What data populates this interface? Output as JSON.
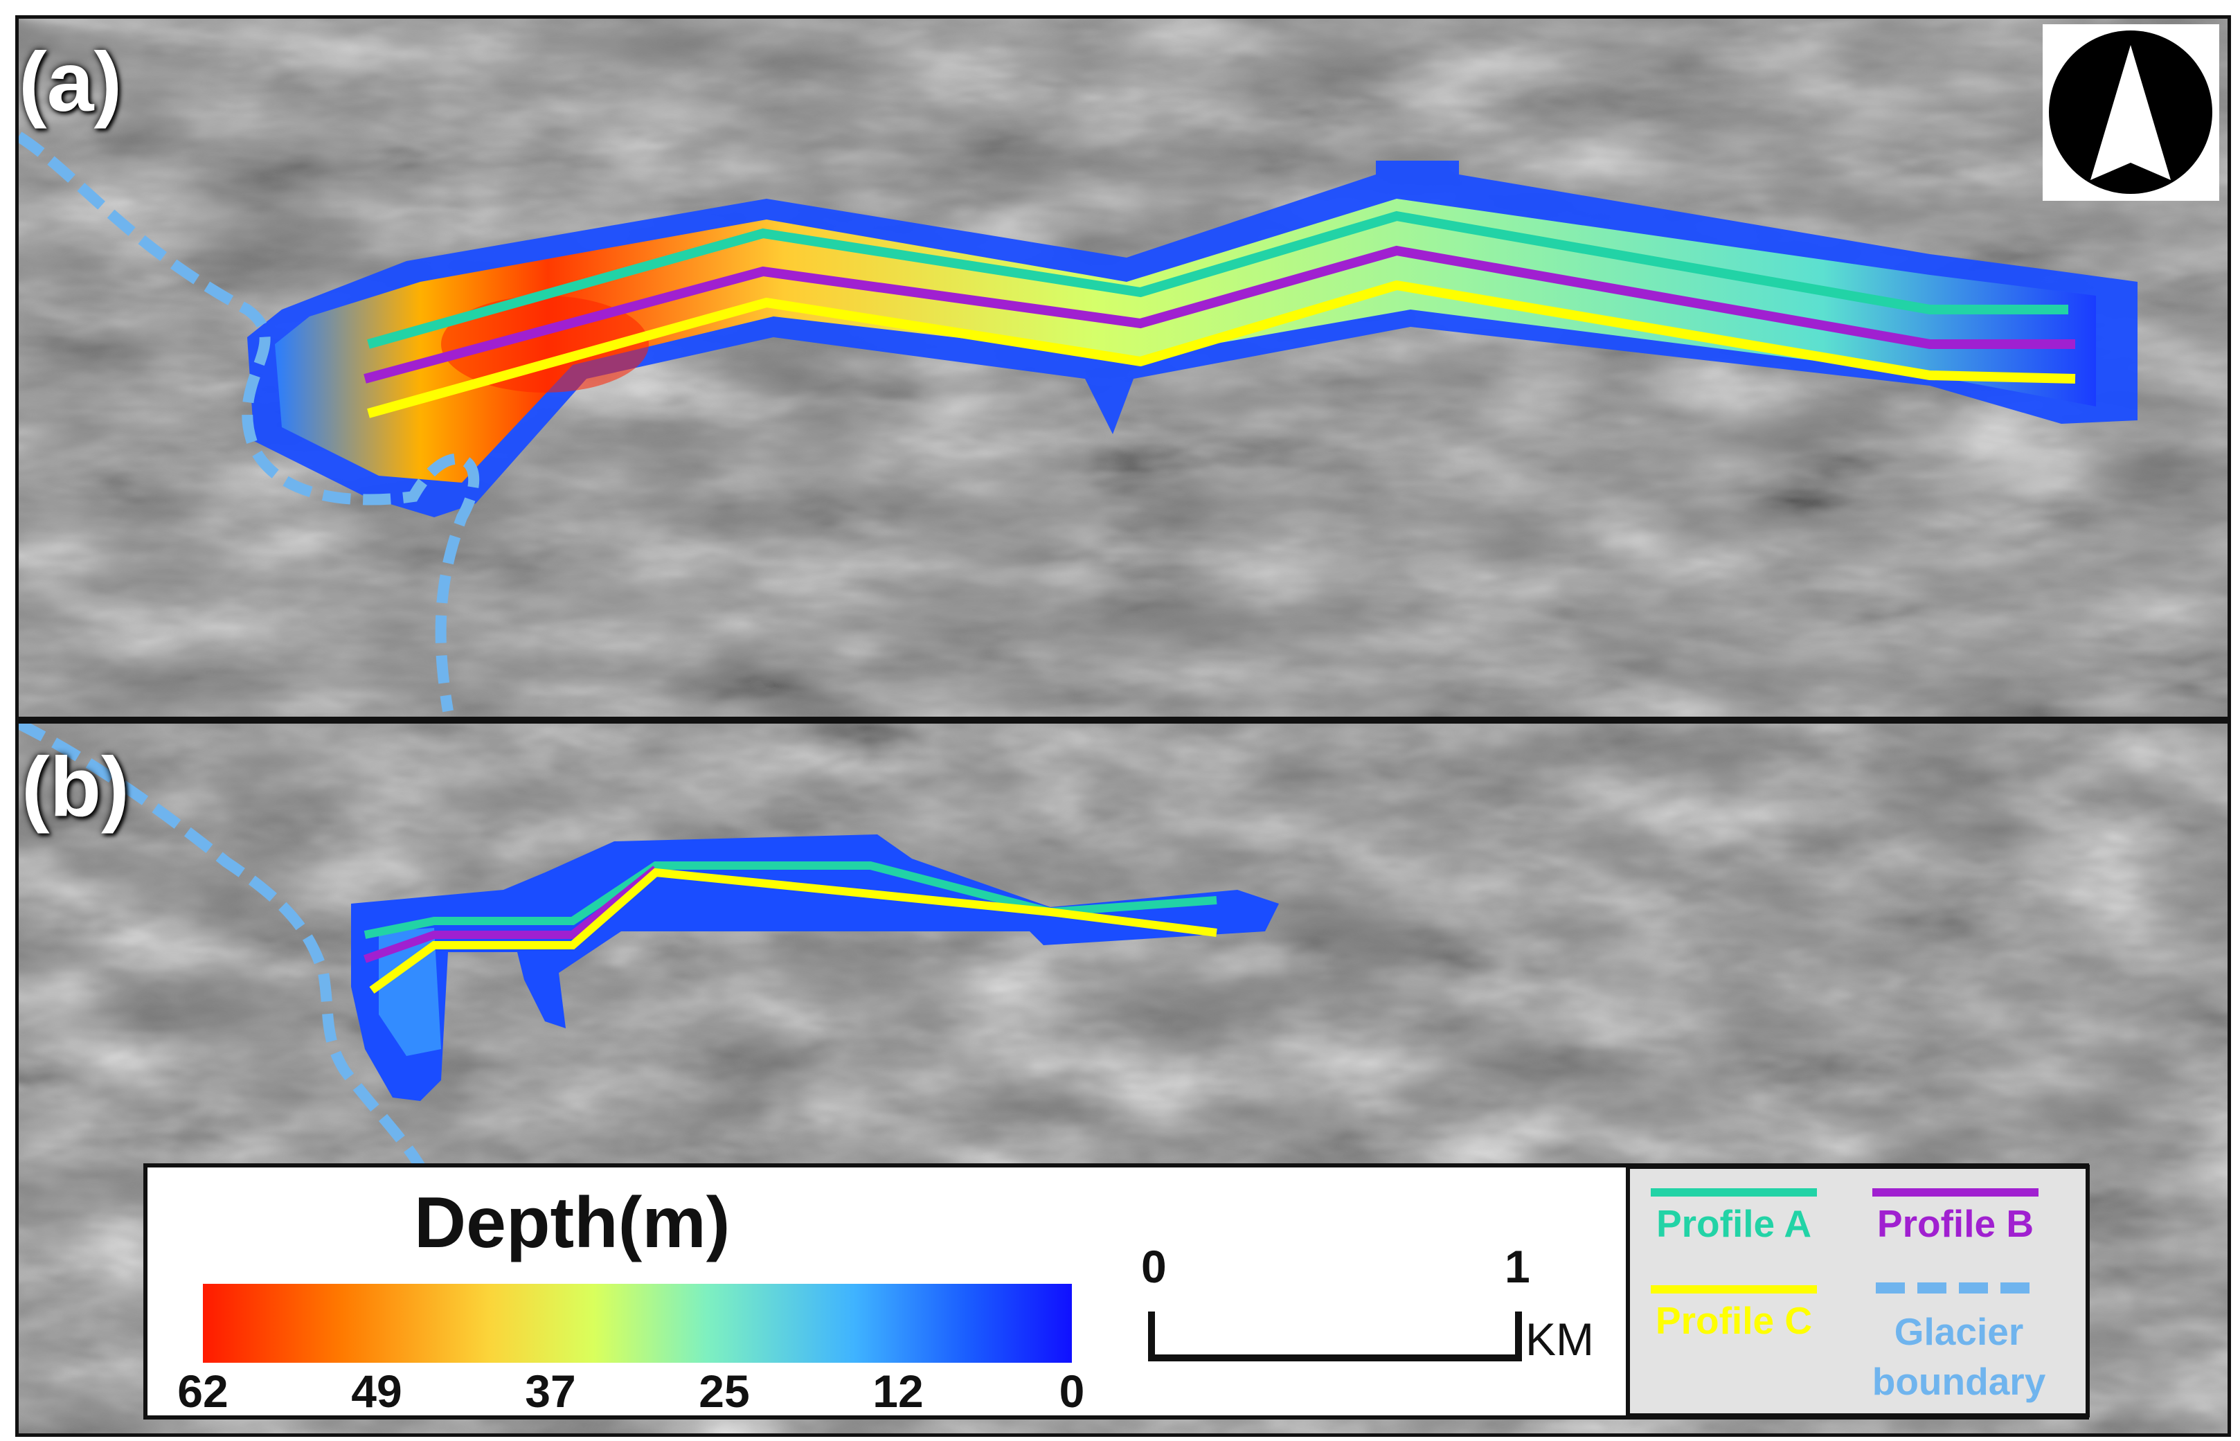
{
  "panels": {
    "a": {
      "label": "(a)"
    },
    "b": {
      "label": "(b)"
    }
  },
  "legend": {
    "title": "Depth(m)",
    "ticks": [
      "62",
      "49",
      "37",
      "25",
      "12",
      "0"
    ]
  },
  "scale": {
    "zero": "0",
    "one": "1",
    "unit": "KM"
  },
  "profiles": {
    "a": {
      "label": "Profile A",
      "color": "#22d3a6"
    },
    "b": {
      "label": "Profile B",
      "color": "#a020d0"
    },
    "c": {
      "label": "Profile C",
      "color": "#ffff00"
    },
    "boundary": {
      "label": "Glacier boundary",
      "color": "#6fb4ee"
    }
  },
  "colormap": [
    "#ff1a00",
    "#ff7a00",
    "#fbd53a",
    "#d9ff5c",
    "#7ef0c0",
    "#3fb3ff",
    "#1a5dff",
    "#1010ff"
  ]
}
